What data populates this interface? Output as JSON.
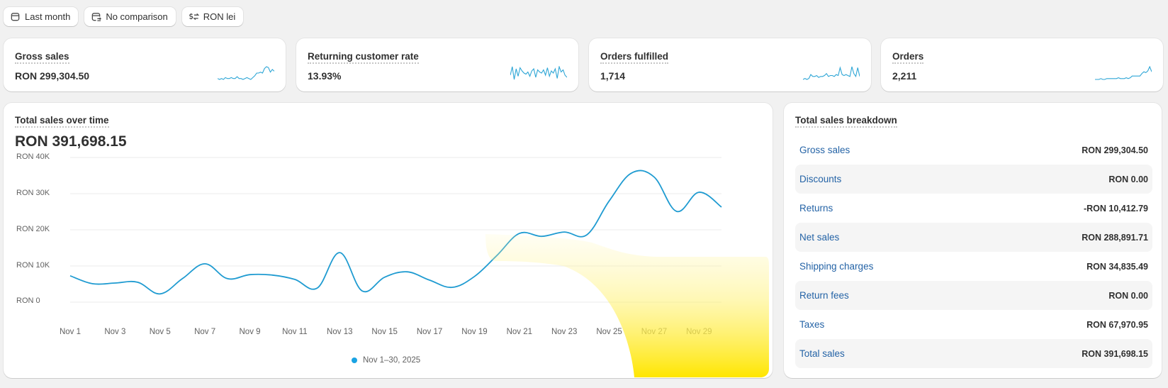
{
  "toolbar": {
    "date_range": {
      "label": "Last month",
      "icon": "calendar-icon"
    },
    "comparison": {
      "label": "No comparison",
      "icon": "calendar-compare-icon"
    },
    "currency": {
      "label": "RON lei",
      "icon": "currency-swap-icon"
    }
  },
  "metrics": [
    {
      "label": "Gross sales",
      "value": "RON 299,304.50",
      "spark": [
        7,
        6,
        7,
        6,
        8,
        7,
        7,
        8,
        7,
        7,
        9,
        7,
        7,
        6,
        7,
        8,
        7,
        6,
        8,
        10,
        13,
        13,
        14,
        13,
        18,
        20,
        19,
        14,
        17,
        15
      ]
    },
    {
      "label": "Returning customer rate",
      "value": "13.93%",
      "spark": [
        10,
        18,
        6,
        16,
        9,
        17,
        14,
        12,
        11,
        13,
        9,
        14,
        16,
        8,
        15,
        13,
        12,
        15,
        10,
        17,
        9,
        14,
        12,
        16,
        7,
        18,
        13,
        15,
        10,
        8
      ]
    },
    {
      "label": "Orders fulfilled",
      "value": "1,714",
      "spark": [
        3,
        4,
        3,
        4,
        8,
        6,
        6,
        7,
        5,
        6,
        6,
        7,
        9,
        6,
        7,
        7,
        6,
        8,
        7,
        15,
        8,
        7,
        8,
        7,
        6,
        16,
        9,
        6,
        15,
        6
      ]
    },
    {
      "label": "Orders",
      "value": "2,211",
      "spark": [
        5,
        5,
        5,
        6,
        5,
        5,
        6,
        6,
        6,
        6,
        6,
        6,
        7,
        6,
        6,
        6,
        7,
        6,
        7,
        9,
        9,
        9,
        9,
        9,
        12,
        14,
        13,
        15,
        20,
        14
      ]
    }
  ],
  "main_chart": {
    "title": "Total sales over time",
    "total": "RON 391,698.15",
    "legend": "Nov 1–30, 2025",
    "line_color": "#1f9bd1",
    "y_ticks": [
      "RON 40K",
      "RON 30K",
      "RON 20K",
      "RON 10K",
      "RON 0"
    ],
    "x_ticks": [
      "Nov 1",
      "Nov 3",
      "Nov 5",
      "Nov 7",
      "Nov 9",
      "Nov 11",
      "Nov 13",
      "Nov 15",
      "Nov 17",
      "Nov 19",
      "Nov 21",
      "Nov 23",
      "Nov 25",
      "Nov 27",
      "Nov 29"
    ]
  },
  "chart_data": {
    "type": "line",
    "title": "Total sales over time",
    "xlabel": "",
    "ylabel": "",
    "ylim": [
      0,
      40000
    ],
    "grid": true,
    "legend_position": "bottom",
    "x": [
      "Nov 1",
      "Nov 2",
      "Nov 3",
      "Nov 4",
      "Nov 5",
      "Nov 6",
      "Nov 7",
      "Nov 8",
      "Nov 9",
      "Nov 10",
      "Nov 11",
      "Nov 12",
      "Nov 13",
      "Nov 14",
      "Nov 15",
      "Nov 16",
      "Nov 17",
      "Nov 18",
      "Nov 19",
      "Nov 20",
      "Nov 21",
      "Nov 22",
      "Nov 23",
      "Nov 24",
      "Nov 25",
      "Nov 26",
      "Nov 27",
      "Nov 28",
      "Nov 29",
      "Nov 30"
    ],
    "series": [
      {
        "name": "Nov 1–30, 2025",
        "values": [
          7300,
          5100,
          5300,
          5500,
          2300,
          6500,
          10600,
          6500,
          7600,
          7500,
          6300,
          3900,
          13700,
          3100,
          6900,
          8400,
          6100,
          4100,
          7100,
          12900,
          19000,
          18200,
          19400,
          18600,
          28000,
          35700,
          34600,
          25100,
          30400,
          26300
        ]
      }
    ]
  },
  "breakdown": {
    "title": "Total sales breakdown",
    "rows": [
      {
        "label": "Gross sales",
        "value": "RON 299,304.50"
      },
      {
        "label": "Discounts",
        "value": "RON 0.00"
      },
      {
        "label": "Returns",
        "value": "-RON 10,412.79"
      },
      {
        "label": "Net sales",
        "value": "RON 288,891.71"
      },
      {
        "label": "Shipping charges",
        "value": "RON 34,835.49"
      },
      {
        "label": "Return fees",
        "value": "RON 0.00"
      },
      {
        "label": "Taxes",
        "value": "RON 67,970.95"
      },
      {
        "label": "Total sales",
        "value": "RON 391,698.15"
      }
    ]
  }
}
